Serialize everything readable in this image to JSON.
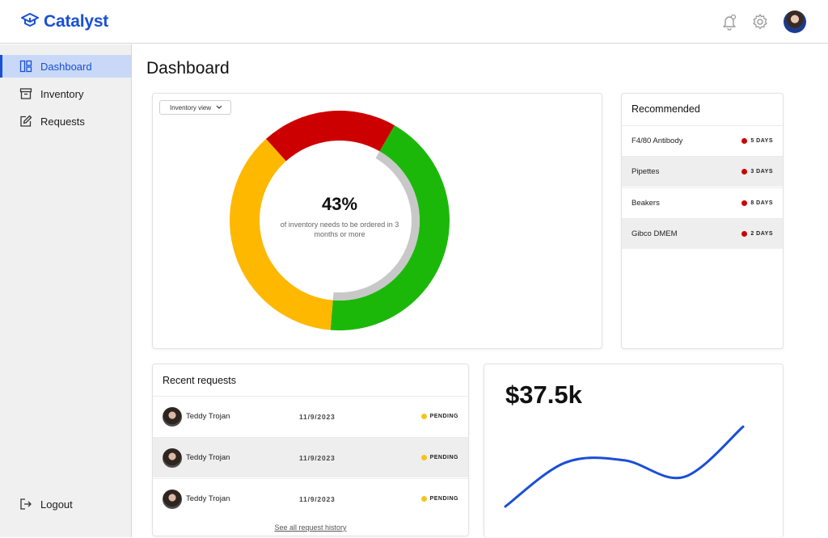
{
  "app": {
    "name": "Catalyst",
    "logo_icon": "graduation-cap-icon"
  },
  "header": {
    "icons": [
      "bell-icon",
      "gear-icon"
    ],
    "avatar": "user-avatar"
  },
  "sidebar": {
    "items": [
      {
        "label": "Dashboard",
        "icon": "dashboard-icon",
        "active": true
      },
      {
        "label": "Inventory",
        "icon": "archive-box-icon",
        "active": false
      },
      {
        "label": "Requests",
        "icon": "edit-icon",
        "active": false
      }
    ],
    "logout": {
      "label": "Logout",
      "icon": "logout-icon"
    }
  },
  "page": {
    "title": "Dashboard"
  },
  "inventory_chart": {
    "view_select": "Inventory view",
    "center_value": "43%",
    "center_text": "of inventory needs to be ordered in 3 months or more"
  },
  "recommended": {
    "title": "Recommended",
    "items": [
      {
        "name": "F4/80 Antibody",
        "days": "5 DAYS"
      },
      {
        "name": "Pipettes",
        "days": "3 DAYS"
      },
      {
        "name": "Beakers",
        "days": "8 DAYS"
      },
      {
        "name": "Gibco DMEM",
        "days": "2 DAYS"
      }
    ]
  },
  "recent_requests": {
    "title": "Recent requests",
    "rows": [
      {
        "name": "Teddy Trojan",
        "date": "11/9/2023",
        "status": "PENDING"
      },
      {
        "name": "Teddy Trojan",
        "date": "11/9/2023",
        "status": "PENDING"
      },
      {
        "name": "Teddy Trojan",
        "date": "11/9/2023",
        "status": "PENDING"
      }
    ],
    "see_all": "See all request history"
  },
  "spend": {
    "value": "$37.5k"
  },
  "chart_data": [
    {
      "type": "pie",
      "title": "",
      "categories": [
        "Green",
        "Yellow",
        "Red"
      ],
      "values": [
        43,
        37,
        20
      ],
      "inner_arc_fraction": 0.43
    },
    {
      "type": "line",
      "title": "",
      "x": [
        0,
        1,
        2,
        3,
        4
      ],
      "values": [
        0,
        0.52,
        0.55,
        0.35,
        0.95
      ]
    }
  ],
  "colors": {
    "accent": "#1a4fd6",
    "green": "#1bb80a",
    "yellow": "#ffb800",
    "red": "#cc0000",
    "gray_arc": "#c8c8c8",
    "pending": "#f5c518",
    "days_dot": "#cc0000",
    "sidebar_active": "#c9d8f6"
  }
}
